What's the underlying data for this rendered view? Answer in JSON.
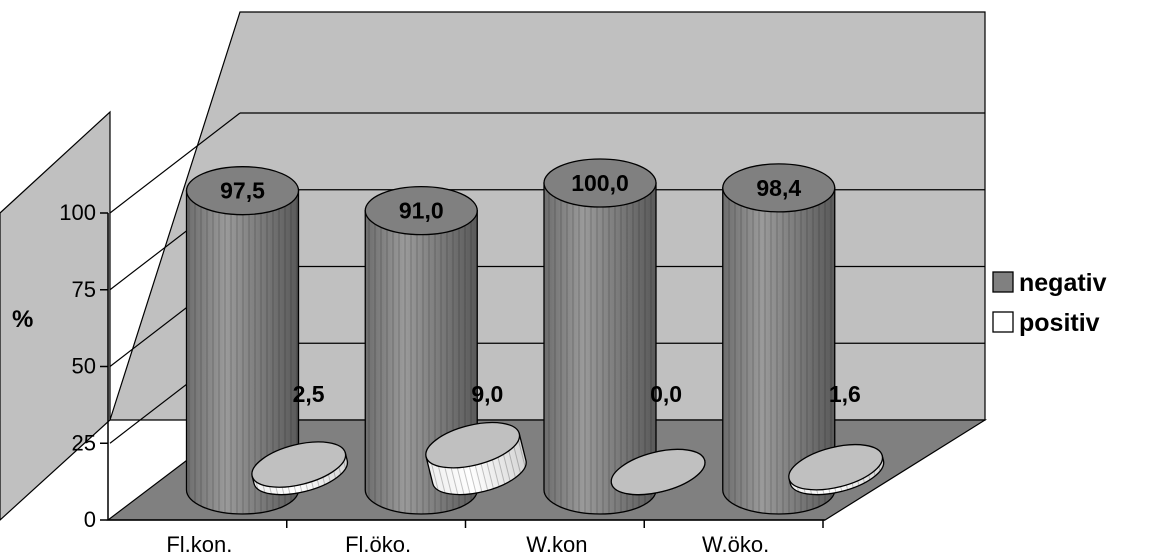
{
  "chart_data": {
    "type": "bar",
    "style": "3d-cylinder",
    "categories": [
      "Fl.kon.",
      "Fl.öko.",
      "W.kon",
      "W.öko."
    ],
    "series": [
      {
        "name": "negativ",
        "values": [
          97.5,
          91.0,
          100.0,
          98.4
        ],
        "labels": [
          "97,5",
          "91,0",
          "100,0",
          "98,4"
        ],
        "color": "#808080"
      },
      {
        "name": "positiv",
        "values": [
          2.5,
          9.0,
          0.0,
          1.6
        ],
        "labels": [
          "2,5",
          "9,0",
          "0,0",
          "1,6"
        ],
        "color": "#ffffff"
      }
    ],
    "ylabel": "%",
    "ylim": [
      0,
      100
    ],
    "yticks": [
      "0",
      "25",
      "50",
      "75",
      "100"
    ],
    "grid": true,
    "legend_position": "right",
    "colors": {
      "back_wall": "#c0c0c0",
      "floor": "#808080",
      "cap": "#c0c0c0"
    }
  }
}
